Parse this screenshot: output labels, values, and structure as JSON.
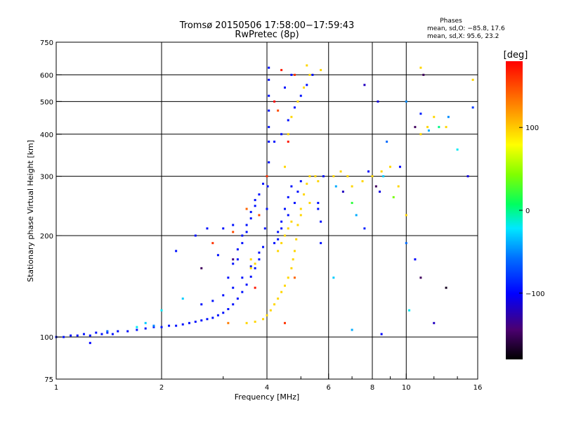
{
  "chart_data": {
    "type": "scatter",
    "title": "Tromsø 20150506 17:58:00−17:59:43",
    "subtitle": "RwPretec (8p)",
    "stats": {
      "heading": "Phases",
      "line1": "mean, sd,O: −85.8, 17.6",
      "line2": "mean, sd,X:  95.6, 23.2"
    },
    "xlabel": "Frequency [MHz]",
    "ylabel": "Stationary phase Virtual Height [km]",
    "xscale": "log",
    "yscale": "log",
    "xlim": [
      1,
      16
    ],
    "ylim": [
      75,
      750
    ],
    "xticks": [
      1,
      2,
      4,
      6,
      8,
      10,
      16
    ],
    "xtick_labels": [
      "1",
      "2",
      "4",
      "6",
      "8",
      "10",
      "16"
    ],
    "xminor": [
      3,
      5,
      7,
      9,
      12,
      14
    ],
    "yticks": [
      75,
      100,
      200,
      300,
      400,
      500,
      600,
      750
    ],
    "ytick_labels": [
      "75",
      "100",
      "200",
      "300",
      "400",
      "500",
      "600",
      "750"
    ],
    "grid": true,
    "colorbar": {
      "label": "[deg]",
      "range": [
        -180,
        180
      ],
      "ticks": [
        -100,
        0,
        100
      ],
      "tick_labels": [
        "−100",
        "0",
        "100"
      ]
    },
    "series": [
      {
        "mode": "O",
        "points": [
          [
            1.0,
            100,
            -95
          ],
          [
            1.05,
            100,
            -95
          ],
          [
            1.1,
            101,
            -95
          ],
          [
            1.15,
            101,
            -95
          ],
          [
            1.2,
            102,
            -95
          ],
          [
            1.25,
            101,
            -95
          ],
          [
            1.3,
            103,
            -95
          ],
          [
            1.35,
            102,
            -95
          ],
          [
            1.4,
            103,
            -95
          ],
          [
            1.45,
            102,
            -95
          ],
          [
            1.5,
            104,
            -95
          ],
          [
            1.6,
            104,
            -95
          ],
          [
            1.7,
            105,
            -95
          ],
          [
            1.8,
            106,
            -95
          ],
          [
            1.9,
            107,
            -95
          ],
          [
            2.0,
            107,
            -95
          ],
          [
            2.1,
            108,
            -95
          ],
          [
            2.2,
            108,
            -95
          ],
          [
            2.3,
            109,
            -95
          ],
          [
            2.4,
            110,
            -95
          ],
          [
            2.5,
            111,
            -95
          ],
          [
            2.6,
            112,
            -95
          ],
          [
            2.7,
            113,
            -95
          ],
          [
            2.8,
            114,
            -95
          ],
          [
            2.9,
            116,
            -95
          ],
          [
            3.0,
            118,
            -95
          ],
          [
            3.1,
            121,
            -95
          ],
          [
            3.2,
            125,
            -95
          ],
          [
            3.3,
            130,
            -95
          ],
          [
            3.4,
            136,
            -95
          ],
          [
            3.5,
            143,
            -95
          ],
          [
            3.6,
            151,
            -95
          ],
          [
            3.7,
            160,
            -95
          ],
          [
            3.8,
            170,
            -95
          ],
          [
            3.9,
            185,
            -95
          ],
          [
            3.95,
            210,
            -95
          ],
          [
            4.0,
            240,
            -95
          ],
          [
            4.02,
            280,
            -95
          ],
          [
            4.05,
            330,
            -95
          ],
          [
            4.05,
            380,
            -95
          ],
          [
            4.05,
            420,
            -95
          ],
          [
            4.05,
            470,
            -95
          ],
          [
            4.05,
            520,
            -95
          ],
          [
            4.05,
            580,
            -95
          ],
          [
            4.05,
            630,
            -95
          ],
          [
            2.6,
            125,
            -95
          ],
          [
            2.8,
            128,
            -95
          ],
          [
            3.0,
            133,
            -95
          ],
          [
            3.2,
            140,
            -95
          ],
          [
            3.4,
            150,
            -95
          ],
          [
            3.6,
            162,
            -95
          ],
          [
            3.8,
            178,
            -95
          ],
          [
            3.4,
            190,
            -95
          ],
          [
            3.5,
            205,
            -95
          ],
          [
            3.6,
            225,
            -95
          ],
          [
            3.7,
            245,
            -95
          ],
          [
            3.8,
            265,
            -95
          ],
          [
            3.9,
            285,
            -95
          ],
          [
            4.3,
            205,
            -95
          ],
          [
            4.4,
            220,
            -95
          ],
          [
            4.5,
            240,
            -95
          ],
          [
            4.6,
            260,
            -95
          ],
          [
            4.7,
            280,
            -95
          ],
          [
            4.2,
            380,
            -95
          ],
          [
            4.4,
            400,
            -95
          ],
          [
            4.6,
            440,
            -95
          ],
          [
            4.8,
            480,
            -95
          ],
          [
            5.0,
            520,
            -95
          ],
          [
            5.2,
            560,
            -95
          ],
          [
            5.4,
            600,
            -95
          ],
          [
            4.5,
            550,
            -95
          ],
          [
            4.7,
            600,
            -95
          ],
          [
            3.3,
            182,
            -95
          ],
          [
            3.4,
            200,
            -95
          ],
          [
            3.5,
            215,
            -95
          ],
          [
            3.6,
            235,
            -95
          ],
          [
            3.7,
            255,
            -95
          ],
          [
            4.2,
            190,
            -95
          ],
          [
            4.3,
            195,
            -95
          ],
          [
            4.4,
            210,
            -95
          ],
          [
            4.6,
            230,
            -95
          ],
          [
            4.8,
            250,
            -95
          ],
          [
            4.9,
            270,
            -95
          ],
          [
            5.0,
            290,
            -95
          ],
          [
            5.6,
            250,
            -95
          ],
          [
            5.7,
            220,
            -95
          ],
          [
            5.7,
            190,
            -95
          ],
          [
            5.8,
            300,
            -95
          ],
          [
            5.6,
            240,
            -95
          ],
          [
            3.1,
            150,
            -95
          ],
          [
            3.2,
            165,
            -95
          ],
          [
            3.3,
            170,
            -95
          ],
          [
            2.5,
            200,
            -95
          ],
          [
            2.2,
            180,
            -95
          ],
          [
            2.7,
            210,
            -95
          ],
          [
            3.0,
            210,
            -95
          ],
          [
            3.2,
            215,
            -95
          ],
          [
            2.9,
            175,
            -95
          ]
        ]
      },
      {
        "mode": "X",
        "points": [
          [
            3.5,
            110,
            95
          ],
          [
            3.7,
            111,
            95
          ],
          [
            3.9,
            113,
            95
          ],
          [
            4.0,
            116,
            95
          ],
          [
            4.1,
            120,
            95
          ],
          [
            4.2,
            125,
            95
          ],
          [
            4.3,
            130,
            95
          ],
          [
            4.4,
            136,
            95
          ],
          [
            4.5,
            142,
            95
          ],
          [
            4.6,
            150,
            95
          ],
          [
            4.7,
            160,
            95
          ],
          [
            4.75,
            170,
            95
          ],
          [
            4.8,
            180,
            95
          ],
          [
            4.85,
            195,
            95
          ],
          [
            4.9,
            215,
            95
          ],
          [
            5.0,
            240,
            95
          ],
          [
            5.1,
            265,
            95
          ],
          [
            5.2,
            285,
            95
          ],
          [
            5.3,
            300,
            95
          ],
          [
            5.5,
            300,
            95
          ],
          [
            5.6,
            290,
            95
          ],
          [
            3.6,
            160,
            95
          ],
          [
            3.7,
            165,
            95
          ],
          [
            3.6,
            170,
            95
          ],
          [
            4.3,
            180,
            95
          ],
          [
            4.4,
            190,
            95
          ],
          [
            4.5,
            200,
            95
          ],
          [
            4.6,
            210,
            95
          ],
          [
            4.7,
            220,
            95
          ],
          [
            5.0,
            230,
            95
          ],
          [
            5.3,
            250,
            95
          ],
          [
            4.5,
            320,
            95
          ],
          [
            4.6,
            400,
            95
          ],
          [
            4.7,
            450,
            95
          ],
          [
            4.9,
            500,
            95
          ],
          [
            5.1,
            550,
            95
          ],
          [
            5.3,
            600,
            95
          ],
          [
            5.7,
            620,
            95
          ],
          [
            5.2,
            640,
            95
          ],
          [
            6.2,
            300,
            95
          ],
          [
            6.5,
            310,
            95
          ],
          [
            6.8,
            300,
            95
          ],
          [
            7.0,
            280,
            95
          ],
          [
            7.5,
            290,
            95
          ],
          [
            8.0,
            300,
            95
          ],
          [
            8.5,
            310,
            95
          ],
          [
            9.0,
            320,
            95
          ],
          [
            9.5,
            280,
            95
          ],
          [
            11.0,
            400,
            95
          ],
          [
            11.5,
            420,
            95
          ],
          [
            13.0,
            420,
            95
          ],
          [
            15.5,
            580,
            95
          ],
          [
            11.0,
            630,
            95
          ],
          [
            12.0,
            450,
            95
          ],
          [
            10.0,
            230,
            95
          ]
        ]
      },
      {
        "mode": "other",
        "points": [
          [
            6.3,
            280,
            -40
          ],
          [
            6.6,
            270,
            -120
          ],
          [
            7.0,
            250,
            20
          ],
          [
            7.2,
            230,
            -40
          ],
          [
            7.6,
            210,
            -90
          ],
          [
            7.8,
            310,
            -100
          ],
          [
            8.2,
            280,
            -150
          ],
          [
            8.4,
            270,
            -110
          ],
          [
            8.6,
            300,
            -30
          ],
          [
            8.8,
            380,
            -60
          ],
          [
            9.2,
            260,
            40
          ],
          [
            9.6,
            320,
            -100
          ],
          [
            10.0,
            500,
            -50
          ],
          [
            10.6,
            420,
            -150
          ],
          [
            11.0,
            460,
            -90
          ],
          [
            11.6,
            410,
            -40
          ],
          [
            12.4,
            420,
            0
          ],
          [
            13.2,
            450,
            -50
          ],
          [
            14.0,
            360,
            -20
          ],
          [
            15.5,
            480,
            -80
          ],
          [
            15.0,
            300,
            -110
          ],
          [
            10.0,
            190,
            -60
          ],
          [
            10.6,
            170,
            -100
          ],
          [
            11.0,
            150,
            -150
          ],
          [
            12.0,
            110,
            -120
          ],
          [
            13.0,
            140,
            -170
          ],
          [
            10.2,
            120,
            -20
          ],
          [
            8.5,
            102,
            -100
          ],
          [
            7.0,
            105,
            -40
          ],
          [
            6.2,
            150,
            -30
          ],
          [
            7.6,
            560,
            -120
          ],
          [
            8.3,
            500,
            -110
          ],
          [
            11.2,
            600,
            -150
          ],
          [
            4.8,
            600,
            160
          ],
          [
            4.4,
            620,
            170
          ],
          [
            4.2,
            500,
            180
          ],
          [
            4.3,
            470,
            150
          ],
          [
            4.6,
            380,
            170
          ],
          [
            4.0,
            300,
            160
          ],
          [
            3.8,
            230,
            150
          ],
          [
            3.5,
            240,
            140
          ],
          [
            3.2,
            205,
            150
          ],
          [
            2.8,
            190,
            160
          ],
          [
            4.8,
            150,
            140
          ],
          [
            3.7,
            140,
            170
          ],
          [
            4.5,
            110,
            160
          ],
          [
            3.1,
            110,
            130
          ],
          [
            3.2,
            170,
            -140
          ],
          [
            2.6,
            160,
            -150
          ],
          [
            2.3,
            130,
            -30
          ],
          [
            2.0,
            120,
            -20
          ],
          [
            1.8,
            110,
            -30
          ],
          [
            1.7,
            107,
            -20
          ],
          [
            1.9,
            108,
            -50
          ],
          [
            1.4,
            104,
            -60
          ],
          [
            1.25,
            96,
            -100
          ]
        ]
      }
    ]
  }
}
